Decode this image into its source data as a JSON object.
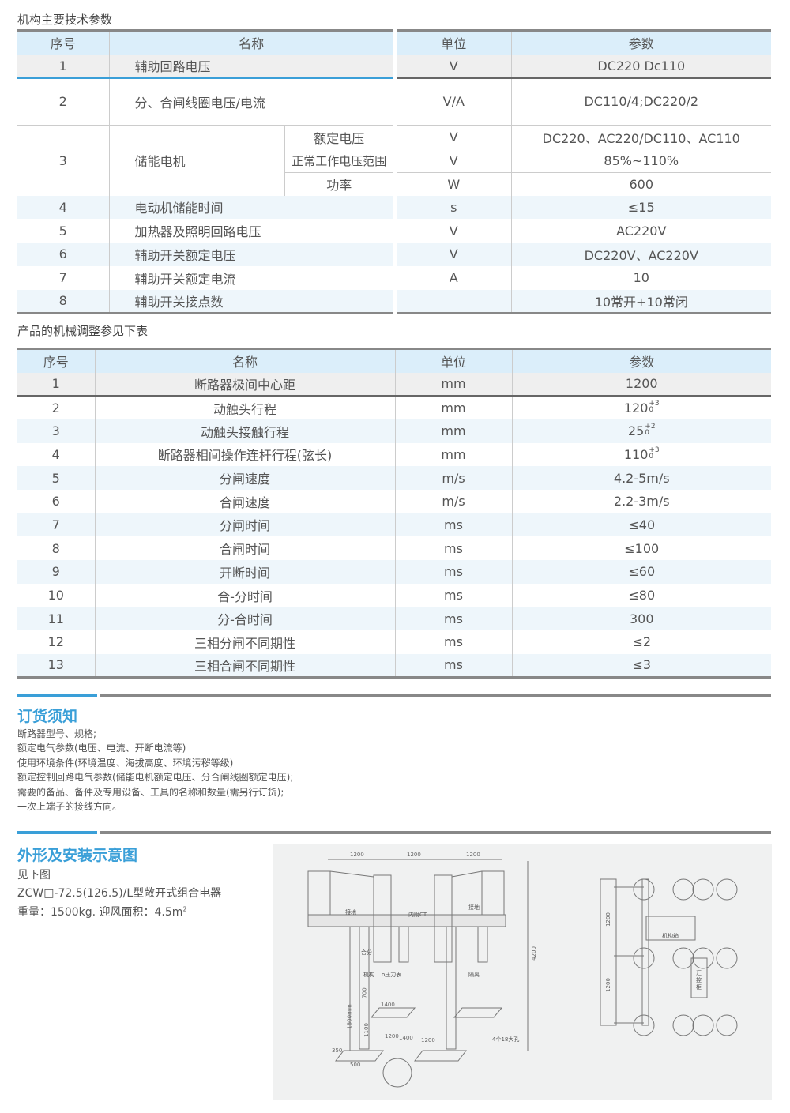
{
  "table1": {
    "caption": "机构主要技术参数",
    "headers": [
      "序号",
      "名称",
      "单位",
      "参数"
    ],
    "rows": [
      {
        "no": "1",
        "name": "辅助回路电压",
        "unit": "V",
        "value": "DC220 Dc110"
      },
      {
        "no": "2",
        "name": "分、合闸线圈电压/电流",
        "unit": "V/A",
        "value": "DC110/4;DC220/2"
      },
      {
        "no": "3",
        "name": "储能电机",
        "subs": [
          {
            "name": "额定电压",
            "unit": "V",
            "value": "DC220、AC220/DC110、AC110"
          },
          {
            "name": "正常工作电压范围",
            "unit": "V",
            "value": "85%~110%"
          },
          {
            "name": "功率",
            "unit": "W",
            "value": "600"
          }
        ]
      },
      {
        "no": "4",
        "name": "电动机储能时间",
        "unit": "s",
        "value": "≤15"
      },
      {
        "no": "5",
        "name": "加热器及照明回路电压",
        "unit": "V",
        "value": "AC220V"
      },
      {
        "no": "6",
        "name": "辅助开关额定电压",
        "unit": "V",
        "value": "DC220V、AC220V"
      },
      {
        "no": "7",
        "name": "辅助开关额定电流",
        "unit": "A",
        "value": "10"
      },
      {
        "no": "8",
        "name": "辅助开关接点数",
        "unit": "",
        "value": "10常开+10常闭"
      }
    ]
  },
  "table2": {
    "caption": "产品的机械调整参见下表",
    "headers": [
      "序号",
      "名称",
      "单位",
      "参数"
    ],
    "rows": [
      {
        "no": "1",
        "name": "断路器极间中心距",
        "unit": "mm",
        "value": "1200"
      },
      {
        "no": "2",
        "name": "动触头行程",
        "unit": "mm",
        "value": "120",
        "tol_up": "+3",
        "tol_down": "0"
      },
      {
        "no": "3",
        "name": "动触头接触行程",
        "unit": "mm",
        "value": "25",
        "tol_up": "+2",
        "tol_down": "0"
      },
      {
        "no": "4",
        "name": "断路器相间操作连杆行程(弦长)",
        "unit": "mm",
        "value": "110",
        "tol_up": "+3",
        "tol_down": "0"
      },
      {
        "no": "5",
        "name": "分闸速度",
        "unit": "m/s",
        "value": "4.2-5m/s"
      },
      {
        "no": "6",
        "name": "合闸速度",
        "unit": "m/s",
        "value": "2.2-3m/s"
      },
      {
        "no": "7",
        "name": "分闸时间",
        "unit": "ms",
        "value": "≤40"
      },
      {
        "no": "8",
        "name": "合闸时间",
        "unit": "ms",
        "value": "≤100"
      },
      {
        "no": "9",
        "name": "开断时间",
        "unit": "ms",
        "value": "≤60"
      },
      {
        "no": "10",
        "name": "合-分时间",
        "unit": "ms",
        "value": "≤80"
      },
      {
        "no": "11",
        "name": "分-合时间",
        "unit": "ms",
        "value": "300"
      },
      {
        "no": "12",
        "name": "三相分闸不同期性",
        "unit": "ms",
        "value": "≤2"
      },
      {
        "no": "13",
        "name": "三相合闸不同期性",
        "unit": "ms",
        "value": "≤3"
      }
    ]
  },
  "ordering": {
    "title": "订货须知",
    "items": [
      "断路器型号、规格;",
      "额定电气参数(电压、电流、开断电流等)",
      "使用环境条件(环境温度、海拔高度、环境污秽等级)",
      "额定控制回路电气参数(储能电机额定电压、分合闸线圈额定电压);",
      "需要的备品、备件及专用设备、工具的名称和数量(需另行订货);",
      "一次上端子的接线方向。"
    ]
  },
  "outline": {
    "title": "外形及安装示意图",
    "lines": [
      "见下图",
      "ZCW□-72.5(126.5)/L型敞开式组合电器"
    ],
    "weight_text": "重量：1500kg. 迎风面积：4.5m",
    "weight_sup": "2"
  },
  "drawing": {
    "front": {
      "dims": [
        "1200",
        "1200",
        "1200",
        "4200",
        "1800mm",
        "700",
        "1100",
        "1400",
        "1200",
        "1400",
        "1200",
        "350",
        "500"
      ],
      "labels": [
        "接地",
        "内附CT",
        "接地",
        "合分",
        "机构",
        "o压力表",
        "隔离",
        "4个18大孔"
      ]
    },
    "top": {
      "dims": [
        "1200",
        "1200"
      ],
      "labels": [
        "机构箱",
        "汇控柜"
      ]
    }
  },
  "colors": {
    "accent": "#3a9fd8",
    "header_bg": "#dbeefa",
    "rule": "#888888"
  }
}
